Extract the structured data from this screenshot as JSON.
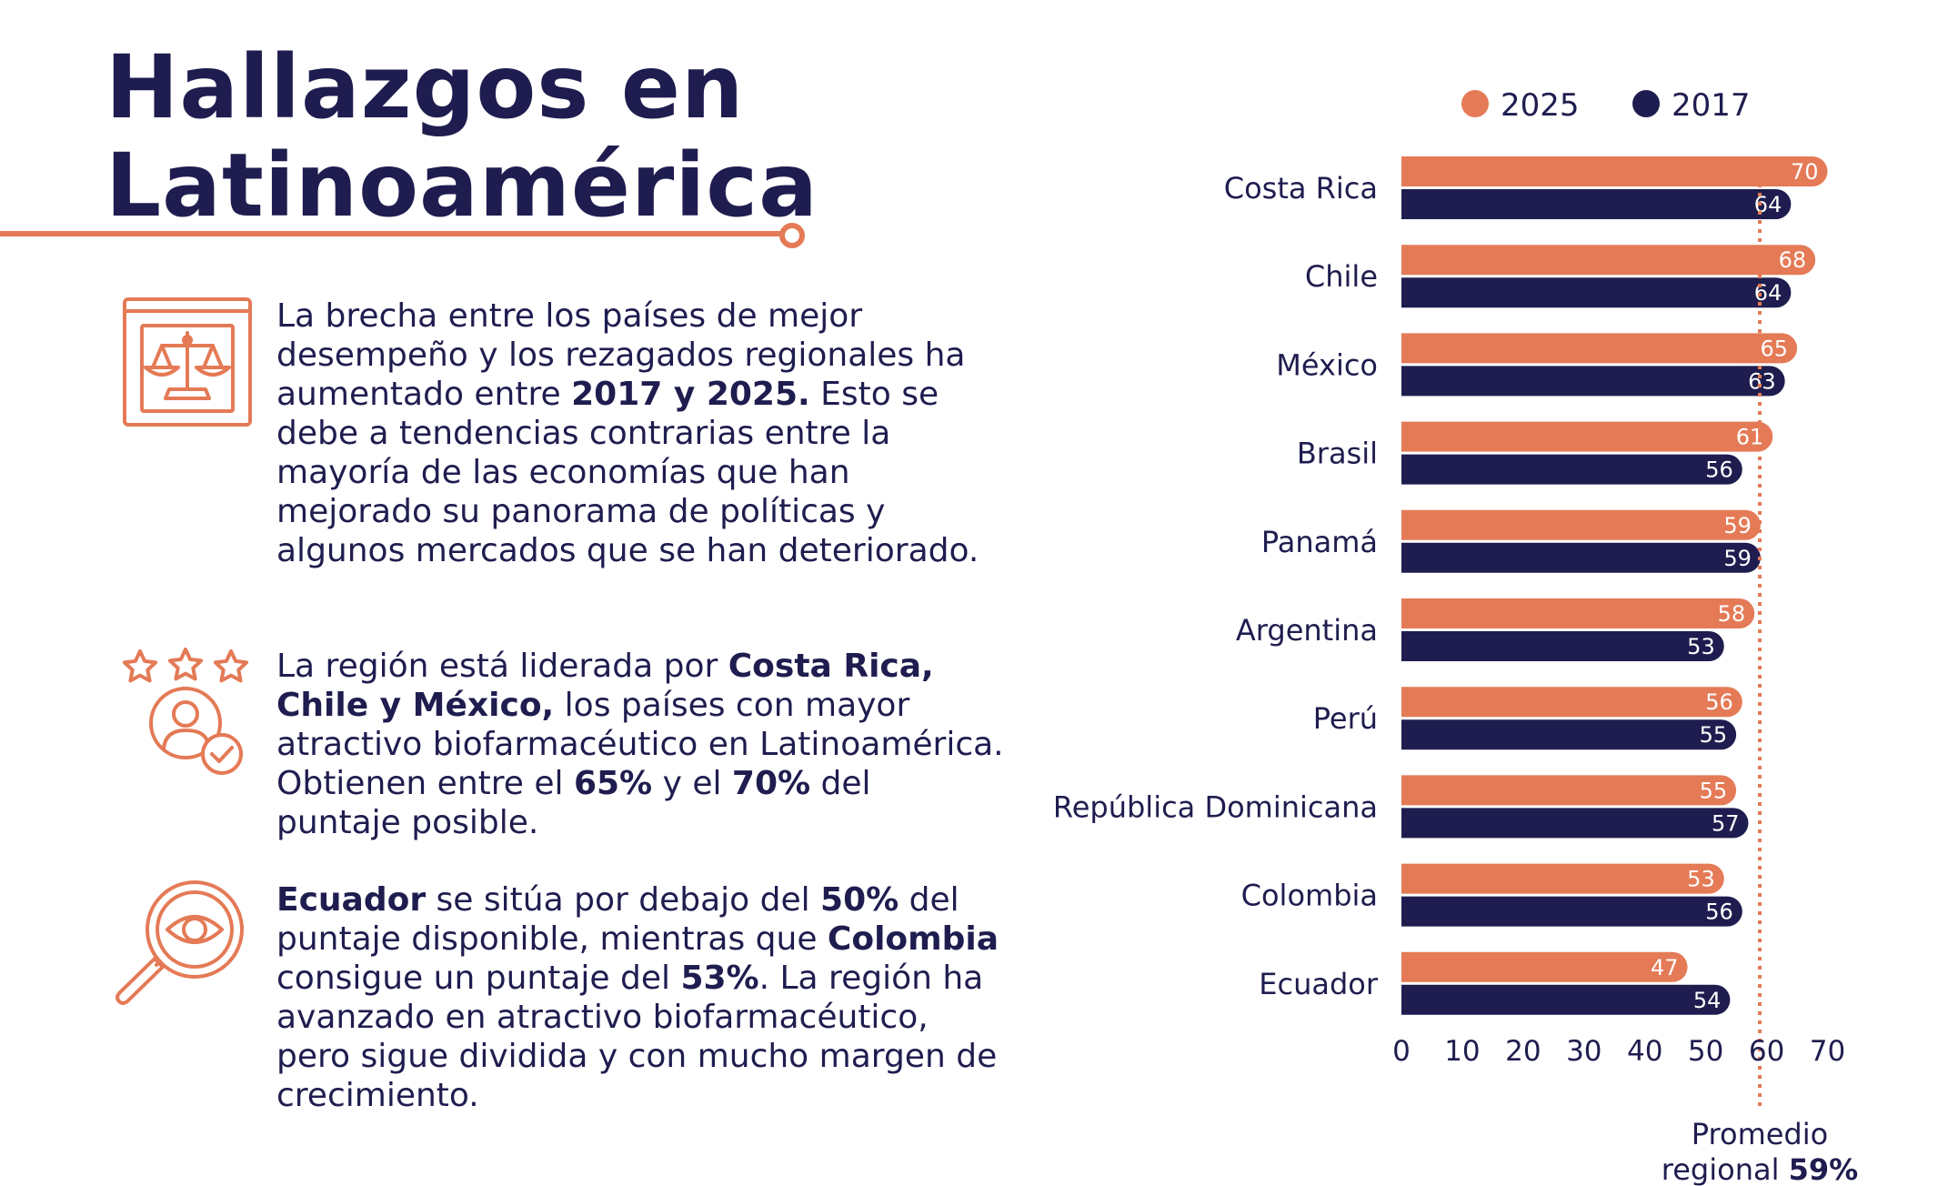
{
  "title_line1": "Hallazgos en",
  "title_line2": "Latinoamérica",
  "findings": [
    {
      "icon": "scale-icon",
      "segments": [
        {
          "text": "La brecha entre los países de mejor desempeño y los rezagados regionales ha aumentado entre ",
          "bold": false
        },
        {
          "text": "2017 y 2025.",
          "bold": true
        },
        {
          "text": " Esto se debe a tendencias contrarias entre la mayoría de las economías que han mejorado su panorama de políticas y algunos mercados que se han deteriorado.",
          "bold": false
        }
      ]
    },
    {
      "icon": "stars-user-check-icon",
      "segments": [
        {
          "text": "La región está liderada por ",
          "bold": false
        },
        {
          "text": "Costa Rica, Chile y México,",
          "bold": true
        },
        {
          "text": " los países con mayor atractivo biofarmacéutico en Latinoamérica. Obtienen entre el ",
          "bold": false
        },
        {
          "text": "65%",
          "bold": true
        },
        {
          "text": " y el ",
          "bold": false
        },
        {
          "text": "70%",
          "bold": true
        },
        {
          "text": " del puntaje posible.",
          "bold": false
        }
      ]
    },
    {
      "icon": "magnifier-eye-icon",
      "segments": [
        {
          "text": "Ecuador",
          "bold": true
        },
        {
          "text": " se sitúa por debajo del ",
          "bold": false
        },
        {
          "text": "50%",
          "bold": true
        },
        {
          "text": " del puntaje disponible, mientras que ",
          "bold": false
        },
        {
          "text": "Colombia",
          "bold": true
        },
        {
          "text": " consigue un puntaje del ",
          "bold": false
        },
        {
          "text": "53%",
          "bold": true
        },
        {
          "text": ". La región ha avanzado en atractivo biofarmacéutico, pero sigue dividida y con mucho margen de crecimiento.",
          "bold": false
        }
      ]
    }
  ],
  "chart_data": {
    "type": "bar",
    "orientation": "horizontal",
    "categories": [
      "Costa Rica",
      "Chile",
      "México",
      "Brasil",
      "Panamá",
      "Argentina",
      "Perú",
      "República Dominicana",
      "Colombia",
      "Ecuador"
    ],
    "series": [
      {
        "name": "2025",
        "color": "#e47a56",
        "values": [
          70,
          68,
          65,
          61,
          59,
          58,
          56,
          55,
          53,
          47
        ]
      },
      {
        "name": "2017",
        "color": "#1f1d4f",
        "values": [
          64,
          64,
          63,
          56,
          59,
          53,
          55,
          57,
          56,
          54
        ]
      }
    ],
    "xlim": [
      0,
      70
    ],
    "xticks": [
      0,
      10,
      20,
      30,
      40,
      50,
      60,
      70
    ],
    "legend_position": "top",
    "reference_line": {
      "value": 59,
      "color": "#e47a56",
      "label_line1": "Promedio",
      "label_prefix": "regional ",
      "label_value": "59%"
    }
  }
}
